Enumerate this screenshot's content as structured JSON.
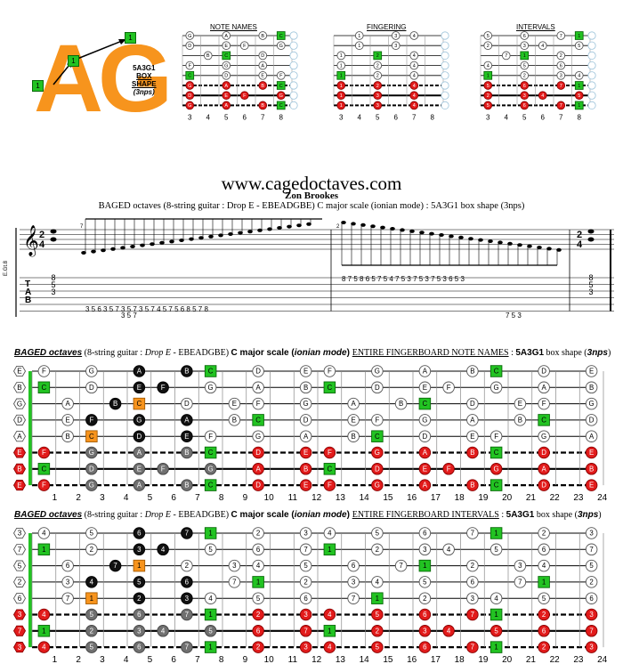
{
  "logo": {
    "text": "AG",
    "markers": [
      "1",
      "1",
      "1"
    ]
  },
  "shape_label": {
    "line1": "5A3G1",
    "line2": "BOX",
    "line3": "SHAPE",
    "line4": "(3nps)"
  },
  "mini_titles": [
    "NOTE NAMES",
    "FINGERING",
    "INTERVALS"
  ],
  "mini_fret_numbers": [
    "3",
    "4",
    "5",
    "6",
    "7",
    "8"
  ],
  "site": "www.cagedoctaves.com",
  "author": "Zon Brookes",
  "subtitle": "BAGED octaves (8-string guitar : Drop E - EBEADGBE) C major scale (ionian mode) : 5A3G1 box shape (3nps)",
  "tab": {
    "label": "E.Gt.8",
    "time_sig_top": "2",
    "time_sig_bottom": "4",
    "tab_letters": [
      "T",
      "A",
      "B"
    ],
    "measure_numbers": [
      "7",
      "2"
    ],
    "start_chord": [
      "8",
      "5",
      "3"
    ],
    "end_chord": [
      "8",
      "5",
      "3"
    ],
    "asc_top": "3 5 6   3 5 7   3 5 7   3 5 7   4 5 7   5 6 8   5 7 8",
    "asc_low": "3 5 7",
    "desc_top": "8 7 5   8 6 5   7 5 4   7 5 3   7 5 3   7 5 3   6 5 3",
    "desc_low": "7 5 3"
  },
  "board1": {
    "title_parts": [
      "BAGED octaves",
      " (8-string guitar : ",
      "Drop E",
      " - EBEADGBE) ",
      "C major scale",
      " (",
      "ionian mode",
      ") ",
      "ENTIRE FINGERBOARD NOTE NAMES",
      " : ",
      "5A3G1",
      " box shape (",
      "3nps",
      ")"
    ],
    "open": [
      "E",
      "B",
      "G",
      "D",
      "A",
      "E",
      "B",
      "E"
    ],
    "frets": [
      [
        "F",
        "",
        "G",
        "",
        "A",
        "",
        "B",
        "C",
        "",
        "D",
        "",
        "E",
        "F",
        "",
        "G",
        "",
        "A",
        "",
        "B",
        "C",
        "",
        "D",
        "",
        "E"
      ],
      [
        "C",
        "",
        "D",
        "",
        "E",
        "F",
        "",
        "G",
        "",
        "A",
        "",
        "B",
        "C",
        "",
        "D",
        "",
        "E",
        "F",
        "",
        "G",
        "",
        "A",
        "",
        "B"
      ],
      [
        "",
        "A",
        "",
        "B",
        "C",
        "",
        "D",
        "",
        "E",
        "F",
        "",
        "G",
        "",
        "A",
        "",
        "B",
        "C",
        "",
        "D",
        "",
        "E",
        "F",
        "",
        "G"
      ],
      [
        "",
        "E",
        "F",
        "",
        "G",
        "",
        "A",
        "",
        "B",
        "C",
        "",
        "D",
        "",
        "E",
        "F",
        "",
        "G",
        "",
        "A",
        "",
        "B",
        "C",
        "",
        "D"
      ],
      [
        "",
        "B",
        "C",
        "",
        "D",
        "",
        "E",
        "F",
        "",
        "G",
        "",
        "A",
        "",
        "B",
        "C",
        "",
        "D",
        "",
        "E",
        "F",
        "",
        "G",
        "",
        "A"
      ],
      [
        "F",
        "",
        "G",
        "",
        "A",
        "",
        "B",
        "C",
        "",
        "D",
        "",
        "E",
        "F",
        "",
        "G",
        "",
        "A",
        "",
        "B",
        "C",
        "",
        "D",
        "",
        "E"
      ],
      [
        "C",
        "",
        "D",
        "",
        "E",
        "F",
        "",
        "G",
        "",
        "A",
        "",
        "B",
        "C",
        "",
        "D",
        "",
        "E",
        "F",
        "",
        "G",
        "",
        "A",
        "",
        "B"
      ],
      [
        "F",
        "",
        "G",
        "",
        "A",
        "",
        "B",
        "C",
        "",
        "D",
        "",
        "E",
        "F",
        "",
        "G",
        "",
        "A",
        "",
        "B",
        "C",
        "",
        "D",
        "",
        "E"
      ]
    ]
  },
  "board2": {
    "title_parts": [
      "BAGED octaves",
      " (8-string guitar : ",
      "Drop E",
      " - EBEADGBE) ",
      "C major scale",
      " (",
      "ionian mode",
      ") ",
      "ENTIRE FINGERBOARD INTERVALS",
      " : ",
      "5A3G1",
      " box shape (",
      "3nps",
      ")"
    ],
    "open": [
      "3",
      "7",
      "5",
      "2",
      "6",
      "3",
      "7",
      "3"
    ],
    "frets": [
      [
        "4",
        "",
        "5",
        "",
        "6",
        "",
        "7",
        "1",
        "",
        "2",
        "",
        "3",
        "4",
        "",
        "5",
        "",
        "6",
        "",
        "7",
        "1",
        "",
        "2",
        "",
        "3"
      ],
      [
        "1",
        "",
        "2",
        "",
        "3",
        "4",
        "",
        "5",
        "",
        "6",
        "",
        "7",
        "1",
        "",
        "2",
        "",
        "3",
        "4",
        "",
        "5",
        "",
        "6",
        "",
        "7"
      ],
      [
        "",
        "6",
        "",
        "7",
        "1",
        "",
        "2",
        "",
        "3",
        "4",
        "",
        "5",
        "",
        "6",
        "",
        "7",
        "1",
        "",
        "2",
        "",
        "3",
        "4",
        "",
        "5"
      ],
      [
        "",
        "3",
        "4",
        "",
        "5",
        "",
        "6",
        "",
        "7",
        "1",
        "",
        "2",
        "",
        "3",
        "4",
        "",
        "5",
        "",
        "6",
        "",
        "7",
        "1",
        "",
        "2"
      ],
      [
        "",
        "7",
        "1",
        "",
        "2",
        "",
        "3",
        "4",
        "",
        "5",
        "",
        "6",
        "",
        "7",
        "1",
        "",
        "2",
        "",
        "3",
        "4",
        "",
        "5",
        "",
        "6"
      ],
      [
        "4",
        "",
        "5",
        "",
        "6",
        "",
        "7",
        "1",
        "",
        "2",
        "",
        "3",
        "4",
        "",
        "5",
        "",
        "6",
        "",
        "7",
        "1",
        "",
        "2",
        "",
        "3"
      ],
      [
        "1",
        "",
        "2",
        "",
        "3",
        "4",
        "",
        "5",
        "",
        "6",
        "",
        "7",
        "1",
        "",
        "2",
        "",
        "3",
        "4",
        "",
        "5",
        "",
        "6",
        "",
        "7"
      ],
      [
        "4",
        "",
        "5",
        "",
        "6",
        "",
        "7",
        "1",
        "",
        "2",
        "",
        "3",
        "4",
        "",
        "5",
        "",
        "6",
        "",
        "7",
        "1",
        "",
        "2",
        "",
        "3"
      ]
    ]
  },
  "fret_numbers": [
    "1",
    "2",
    "3",
    "4",
    "5",
    "6",
    "7",
    "8",
    "9",
    "10",
    "11",
    "12",
    "13",
    "14",
    "15",
    "16",
    "17",
    "18",
    "19",
    "20",
    "21",
    "22",
    "23",
    "24"
  ],
  "colors": {
    "orange": "#f7941d",
    "green": "#22c322",
    "red": "#e21b1b",
    "black": "#111111",
    "gray": "#707070",
    "white": "#ffffff"
  }
}
